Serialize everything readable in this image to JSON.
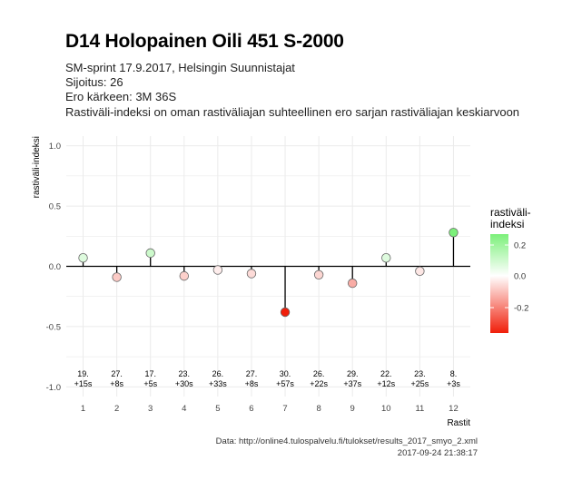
{
  "header": {
    "title": "D14 Holopainen Oili 451 S-2000",
    "line1": "SM-sprint 17.9.2017, Helsingin Suunnistajat",
    "line2": "Sijoitus: 26",
    "line3": "Ero kärkeen: 3M 36S",
    "line4": "Rastiväli-indeksi on oman rastiväliajan suhteellinen ero sarjan rastiväliajan keskiarvoon"
  },
  "caption": {
    "source": "Data: http://online4.tulospalvelu.fi/tulokset/results_2017_smyo_2.xml",
    "timestamp": "2017-09-24 21:38:17"
  },
  "legend": {
    "title_line1": "rastiväli-",
    "title_line2": "indeksi",
    "ticks": [
      "0.2",
      "0.0",
      "-0.2"
    ]
  },
  "chart_data": {
    "type": "scatter",
    "xlabel": "Rastit",
    "ylabel": "rastiväli-indeksi",
    "ylim": [
      -1.0,
      1.0
    ],
    "xlim": [
      1,
      12
    ],
    "y_ticks": [
      "1.0",
      "0.5",
      "0.0",
      "-0.5",
      "-1.0"
    ],
    "y_tick_values": [
      1.0,
      0.5,
      0.0,
      -0.5,
      -1.0
    ],
    "x": [
      1,
      2,
      3,
      4,
      5,
      6,
      7,
      8,
      9,
      10,
      11,
      12
    ],
    "values": [
      0.07,
      -0.09,
      0.11,
      -0.08,
      -0.03,
      -0.06,
      -0.38,
      -0.07,
      -0.14,
      0.07,
      -0.04,
      0.28
    ],
    "annotations_rank": [
      "19.",
      "27.",
      "17.",
      "23.",
      "26.",
      "27.",
      "30.",
      "26.",
      "29.",
      "22.",
      "23.",
      "8."
    ],
    "annotations_diff": [
      "+15s",
      "+8s",
      "+5s",
      "+30s",
      "+33s",
      "+8s",
      "+57s",
      "+22s",
      "+37s",
      "+12s",
      "+25s",
      "+3s"
    ],
    "grid": true,
    "legend_position": "right",
    "colors": {
      "high": "#7cf07a",
      "mid": "#ffffff",
      "low": "#f01e0a"
    }
  }
}
